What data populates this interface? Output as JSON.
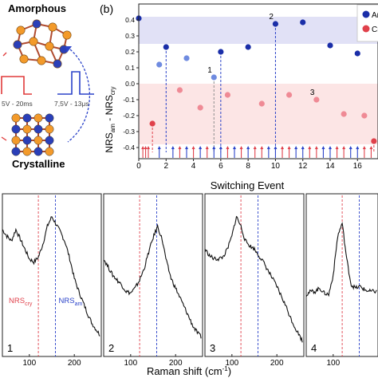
{
  "schematic": {
    "amorphous_label": "Amorphous",
    "crystalline_label": "Crystalline",
    "pulse_reset_label": "5V - 20ms",
    "pulse_set_label": "7,5V - 13μs",
    "colors": {
      "atom_orange": "#f39a2a",
      "atom_blue": "#2a3fb8",
      "pulse_red": "#e03a3a",
      "pulse_blue": "#2b43c9",
      "bond": "#b04a2e"
    }
  },
  "chart_data": [
    {
      "type": "scatter",
      "panel_label": "(b)",
      "xlabel": "Switching Event",
      "ylabel_main": "NRS",
      "ylabel_sub1": "am",
      "ylabel_mid": " - NRS",
      "ylabel_sub2": "cry",
      "xlim": [
        0,
        17.5
      ],
      "ylim": [
        -0.47,
        0.5
      ],
      "xticks": [
        0,
        2,
        4,
        6,
        8,
        10,
        12,
        14,
        16
      ],
      "yticks": [
        -0.4,
        -0.3,
        -0.2,
        -0.1,
        0.0,
        0.1,
        0.2,
        0.3,
        0.4
      ],
      "bands": [
        {
          "from": 0.25,
          "to": 0.42,
          "color": "#dcdcf5"
        },
        {
          "from": -0.38,
          "to": 0.0,
          "color": "#fbe0e0"
        }
      ],
      "series": [
        {
          "name": "Am",
          "color": "#1a2ea8",
          "x": [
            0,
            2,
            6,
            8,
            10,
            12,
            14,
            16,
            5.5,
            1.5,
            3.5
          ],
          "y": [
            0.41,
            0.23,
            0.2,
            0.23,
            0.375,
            0.385,
            0.24,
            0.19,
            0.04,
            0.12,
            0.16
          ]
        },
        {
          "name": "Cry",
          "color": "#e0414b",
          "x": [
            1,
            3,
            4.5,
            6.5,
            9,
            11,
            13,
            15,
            16.5,
            17.2
          ],
          "y": [
            -0.25,
            -0.04,
            -0.15,
            -0.07,
            -0.125,
            -0.07,
            -0.1,
            -0.19,
            -0.2,
            -0.36
          ]
        }
      ],
      "highlighted": [
        {
          "label": "1",
          "x": 5.5,
          "y": 0.04,
          "series": "Am"
        },
        {
          "label": "2",
          "x": 10,
          "y": 0.375,
          "series": "Am"
        },
        {
          "label": "3",
          "x": 13,
          "y": -0.1,
          "series": "Cry"
        },
        {
          "label": "4",
          "x": 17.2,
          "y": -0.36,
          "series": "Cry"
        }
      ],
      "dashed_markers": [
        {
          "x": 1,
          "y": -0.25,
          "color": "#e0414b"
        },
        {
          "x": 2,
          "y": 0.23,
          "color": "#2b43c9"
        },
        {
          "x": 5.5,
          "y": 0.04,
          "color": "#8c8c8c"
        },
        {
          "x": 6,
          "y": 0.2,
          "color": "#2b43c9"
        },
        {
          "x": 10,
          "y": 0.375,
          "color": "#2b43c9"
        },
        {
          "x": 17.2,
          "y": -0.36,
          "color": "#e0414b"
        }
      ],
      "pulse_arrows": [
        {
          "x": 0.3,
          "color": "#e0414b"
        },
        {
          "x": 0.5,
          "color": "#e0414b"
        },
        {
          "x": 0.7,
          "color": "#e0414b"
        },
        {
          "x": 1.5,
          "color": "#2b43c9"
        },
        {
          "x": 2.5,
          "color": "#2b43c9"
        },
        {
          "x": 3.0,
          "color": "#e0414b"
        },
        {
          "x": 3.5,
          "color": "#2b43c9"
        },
        {
          "x": 4.0,
          "color": "#e0414b"
        },
        {
          "x": 4.5,
          "color": "#2b43c9"
        },
        {
          "x": 5.0,
          "color": "#e0414b"
        },
        {
          "x": 5.5,
          "color": "#2b43c9"
        },
        {
          "x": 6.0,
          "color": "#2b43c9"
        },
        {
          "x": 6.5,
          "color": "#e0414b"
        },
        {
          "x": 7.0,
          "color": "#2b43c9"
        },
        {
          "x": 7.5,
          "color": "#e0414b"
        },
        {
          "x": 8.0,
          "color": "#2b43c9"
        },
        {
          "x": 8.5,
          "color": "#e0414b"
        },
        {
          "x": 9.0,
          "color": "#e0414b"
        },
        {
          "x": 9.5,
          "color": "#2b43c9"
        },
        {
          "x": 10.0,
          "color": "#2b43c9"
        },
        {
          "x": 10.5,
          "color": "#e0414b"
        },
        {
          "x": 11.0,
          "color": "#e0414b"
        },
        {
          "x": 11.5,
          "color": "#2b43c9"
        },
        {
          "x": 12.0,
          "color": "#2b43c9"
        },
        {
          "x": 12.5,
          "color": "#e0414b"
        },
        {
          "x": 13.0,
          "color": "#e0414b"
        },
        {
          "x": 13.5,
          "color": "#2b43c9"
        },
        {
          "x": 14.0,
          "color": "#2b43c9"
        },
        {
          "x": 14.5,
          "color": "#e0414b"
        },
        {
          "x": 15.0,
          "color": "#e0414b"
        },
        {
          "x": 15.5,
          "color": "#2b43c9"
        },
        {
          "x": 16.0,
          "color": "#2b43c9"
        },
        {
          "x": 16.5,
          "color": "#e0414b"
        },
        {
          "x": 17.0,
          "color": "#e0414b"
        }
      ],
      "legend": {
        "position": "top-right",
        "entries": [
          "Am",
          "Cry"
        ]
      }
    },
    {
      "type": "line",
      "xlabel": "Raman shift (cm",
      "xlabel_sup": "-1",
      "xlabel_end": ")",
      "xlim": [
        40,
        260
      ],
      "xticks": [
        100,
        200
      ],
      "ylim": [
        0,
        1
      ],
      "ref_lines": [
        {
          "x": 120,
          "color": "#e0414b",
          "label": "NRS",
          "sub": "cry"
        },
        {
          "x": 158,
          "color": "#2b43c9",
          "label": "NRS",
          "sub": "am"
        }
      ],
      "panels": [
        {
          "label": "1",
          "x": [
            40,
            50,
            60,
            70,
            80,
            90,
            100,
            110,
            120,
            130,
            140,
            150,
            160,
            170,
            180,
            190,
            200,
            210,
            220,
            230,
            240,
            250,
            260
          ],
          "y": [
            0.78,
            0.74,
            0.71,
            0.78,
            0.72,
            0.66,
            0.6,
            0.58,
            0.61,
            0.69,
            0.8,
            0.86,
            0.81,
            0.76,
            0.7,
            0.6,
            0.48,
            0.4,
            0.33,
            0.26,
            0.2,
            0.16,
            0.12
          ]
        },
        {
          "label": "2",
          "x": [
            40,
            50,
            60,
            70,
            80,
            90,
            100,
            110,
            120,
            130,
            140,
            150,
            160,
            170,
            180,
            190,
            200,
            210,
            220,
            230,
            240,
            250,
            260
          ],
          "y": [
            0.6,
            0.55,
            0.5,
            0.47,
            0.44,
            0.4,
            0.39,
            0.42,
            0.47,
            0.54,
            0.64,
            0.73,
            0.8,
            0.72,
            0.58,
            0.48,
            0.42,
            0.36,
            0.3,
            0.24,
            0.18,
            0.14,
            0.11
          ]
        },
        {
          "label": "3",
          "x": [
            40,
            50,
            60,
            70,
            80,
            90,
            100,
            110,
            120,
            130,
            140,
            150,
            160,
            170,
            180,
            190,
            200,
            210,
            220,
            230,
            240,
            250,
            260
          ],
          "y": [
            0.66,
            0.62,
            0.6,
            0.6,
            0.61,
            0.66,
            0.74,
            0.86,
            0.8,
            0.71,
            0.68,
            0.66,
            0.62,
            0.58,
            0.53,
            0.48,
            0.43,
            0.37,
            0.31,
            0.24,
            0.18,
            0.13,
            0.08
          ]
        },
        {
          "label": "4",
          "x": [
            40,
            50,
            60,
            70,
            80,
            90,
            100,
            110,
            120,
            130,
            140,
            150,
            160,
            170,
            180,
            190,
            200,
            210,
            220,
            230,
            240,
            250,
            260
          ],
          "y": [
            0.38,
            0.4,
            0.4,
            0.42,
            0.39,
            0.38,
            0.5,
            0.74,
            0.82,
            0.6,
            0.44,
            0.42,
            0.43,
            0.41,
            0.4,
            0.4,
            0.4,
            0.39,
            0.38,
            0.38,
            0.37,
            0.36,
            0.35
          ]
        }
      ]
    }
  ]
}
